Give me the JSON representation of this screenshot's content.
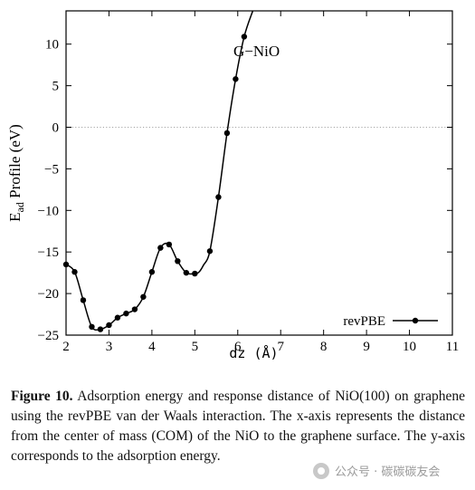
{
  "chart_data": {
    "type": "line",
    "title": "",
    "xlabel": "dz (Å)",
    "ylabel_main": "E",
    "ylabel_sub": "ad",
    "ylabel_rest": " Profile (eV)",
    "xlim": [
      2,
      11
    ],
    "ylim": [
      -25,
      14
    ],
    "x_ticks": [
      "2",
      "3",
      "4",
      "5",
      "6",
      "7",
      "8",
      "9",
      "10",
      "11"
    ],
    "y_ticks": [
      "10",
      "5",
      "0",
      "−5",
      "−10",
      "−15",
      "−20",
      "−25"
    ],
    "y_tick_values": [
      10,
      5,
      0,
      -5,
      -10,
      -15,
      -20,
      -25
    ],
    "zero_line": true,
    "legend_position": "bottom-right",
    "annotation": "G−NiO",
    "series": [
      {
        "name": "revPBE",
        "color": "#000000",
        "x": [
          2.0,
          2.2,
          2.4,
          2.6,
          2.8,
          3.0,
          3.2,
          3.4,
          3.6,
          3.8,
          4.0,
          4.2,
          4.4,
          4.6,
          4.8,
          5.0,
          5.1,
          5.2,
          5.35,
          5.55,
          5.75,
          5.95,
          6.15,
          6.35
        ],
        "y": [
          -16.5,
          -17.4,
          -20.8,
          -24.0,
          -24.3,
          -23.8,
          -22.9,
          -22.4,
          -21.9,
          -20.4,
          -17.4,
          -14.5,
          -14.1,
          -16.1,
          -17.5,
          -17.6,
          -17.4,
          -16.6,
          -14.9,
          -8.4,
          -0.7,
          5.8,
          10.9,
          14.0
        ],
        "marker_x": [
          2.0,
          2.2,
          2.4,
          2.6,
          2.8,
          3.0,
          3.2,
          3.4,
          3.6,
          3.8,
          4.0,
          4.2,
          4.4,
          4.6,
          4.8,
          5.0,
          5.35,
          5.55,
          5.75,
          5.95,
          6.15
        ],
        "marker_y": [
          -16.5,
          -17.4,
          -20.8,
          -24.0,
          -24.3,
          -23.8,
          -22.9,
          -22.4,
          -21.9,
          -20.4,
          -17.4,
          -14.5,
          -14.1,
          -16.1,
          -17.5,
          -17.6,
          -14.9,
          -8.4,
          -0.7,
          5.8,
          10.9
        ]
      }
    ]
  },
  "caption": {
    "label": "Figure 10.",
    "text": " Adsorption energy and response distance of NiO(100) on graphene using the revPBE van der Waals interaction. The x-axis represents the distance from the center of mass (COM) of the NiO to the graphene surface. The y-axis corresponds to the adsorption energy."
  },
  "watermark": {
    "text": "公众号 · 碳碳碳友会",
    "icon": "wechat-icon"
  }
}
